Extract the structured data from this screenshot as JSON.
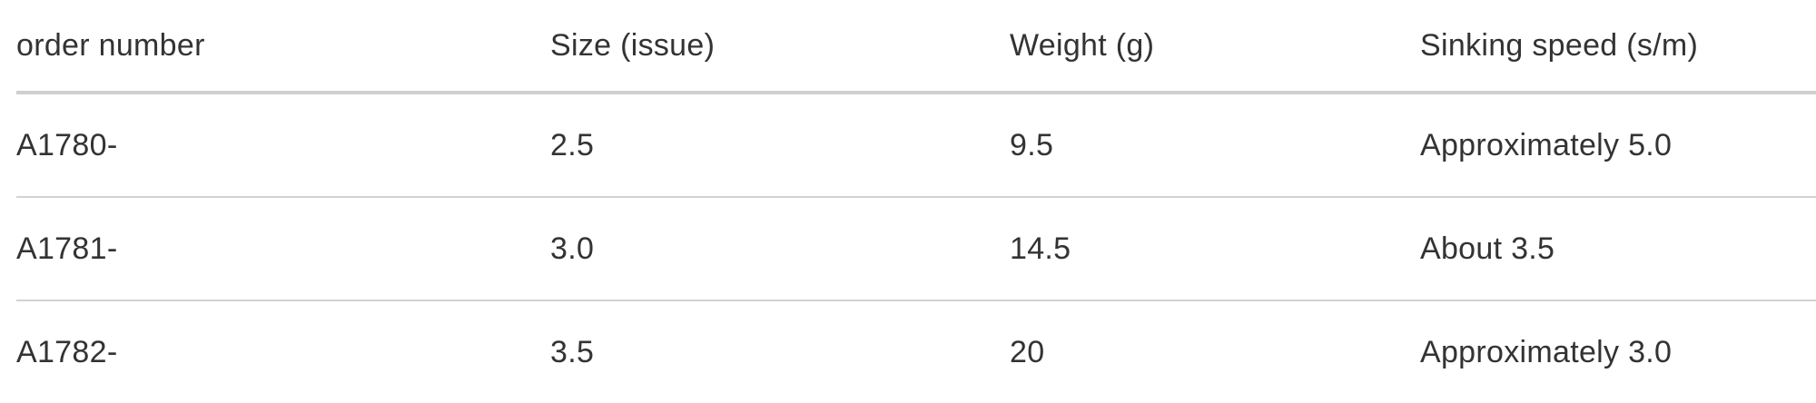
{
  "table": {
    "headers": [
      "order number",
      "Size (issue)",
      "Weight (g)",
      "Sinking speed (s/m)"
    ],
    "rows": [
      [
        "A1780-",
        "2.5",
        "9.5",
        "Approximately 5.0"
      ],
      [
        "A1781-",
        "3.0",
        "14.5",
        "About 3.5"
      ],
      [
        "A1782-",
        "3.5",
        "20",
        "Approximately 3.0"
      ]
    ]
  }
}
